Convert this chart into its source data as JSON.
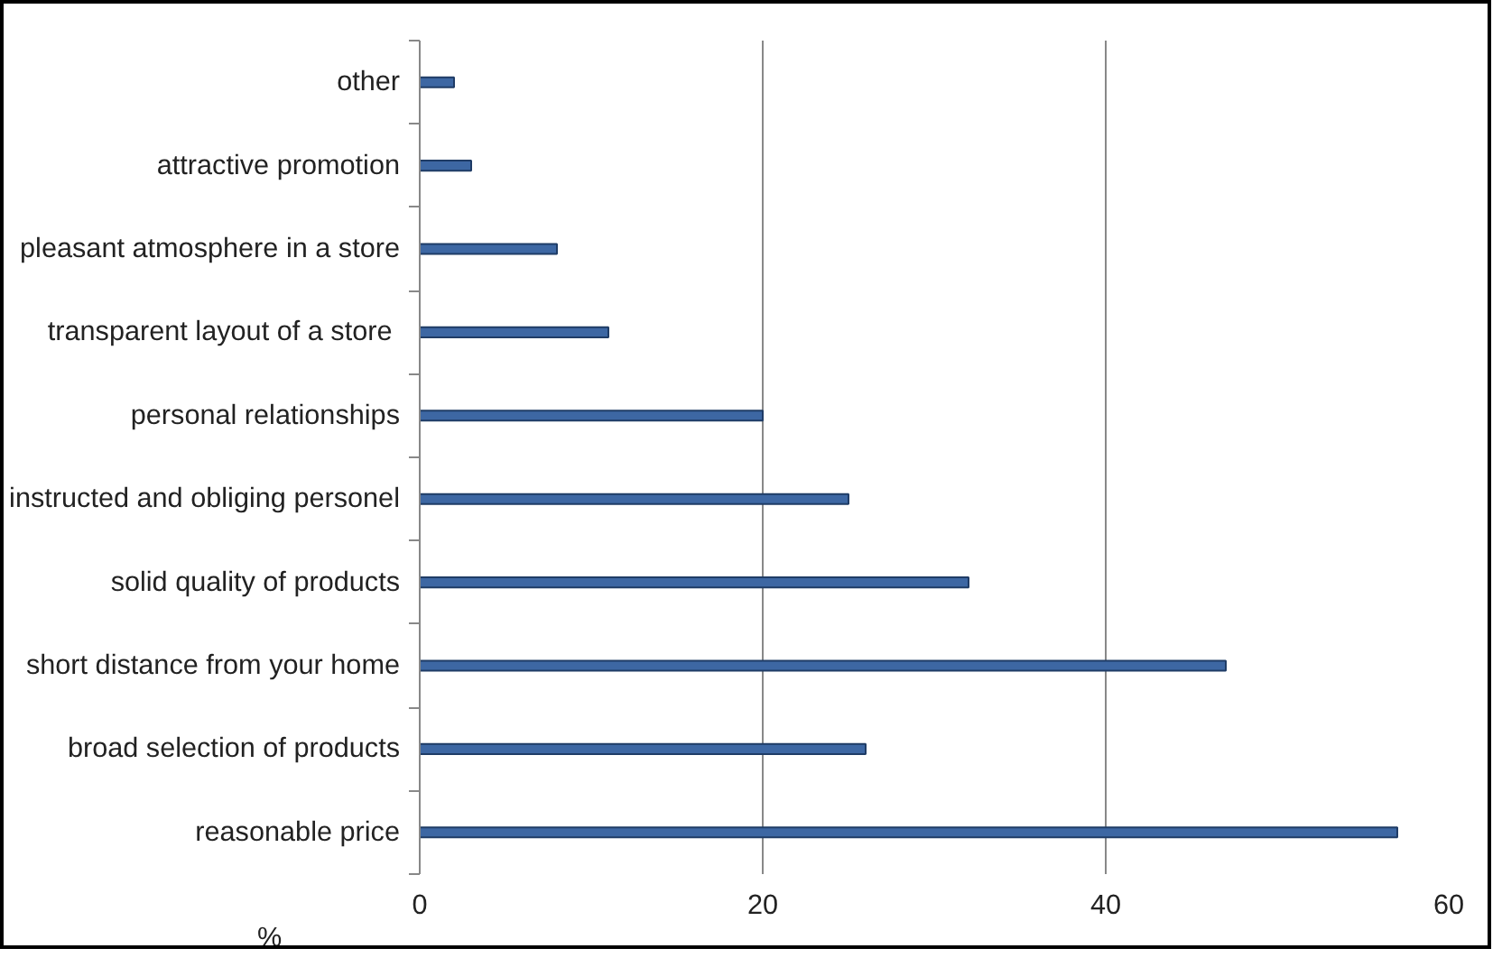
{
  "chart_data": {
    "type": "bar",
    "orientation": "horizontal",
    "xlabel": "%",
    "categories": [
      "other",
      "attractive promotion",
      "pleasant atmosphere in a store",
      "transparent layout of a store ",
      "personal relationships",
      "instructed and obliging personel",
      "solid quality of products",
      "short distance from your home",
      "broad selection of products",
      "reasonable price"
    ],
    "values": [
      2,
      3,
      8,
      11,
      20,
      25,
      32,
      47,
      26,
      57
    ],
    "color": "#3d67a3",
    "xlim": [
      0,
      60
    ],
    "xticks": [
      0,
      20,
      40,
      60
    ],
    "grid": "x"
  }
}
